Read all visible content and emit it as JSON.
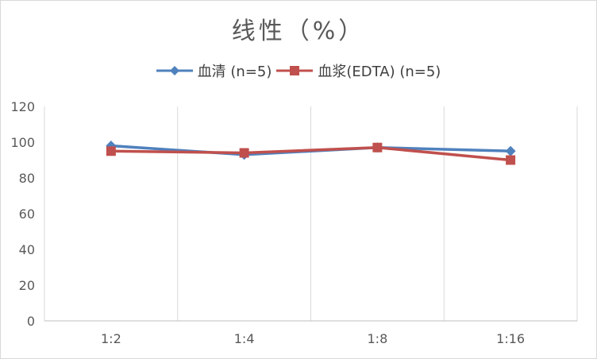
{
  "chart_data": {
    "type": "line",
    "title": "线性（%）",
    "categories": [
      "1:2",
      "1:4",
      "1:8",
      "1:16"
    ],
    "ylim": [
      0,
      120
    ],
    "yticks": [
      0,
      20,
      40,
      60,
      80,
      100,
      120
    ],
    "grid": {
      "vertical": true,
      "horizontal": false
    },
    "legend_position": "top",
    "series": [
      {
        "name": "血清 (n=5)",
        "values": [
          98,
          93,
          97,
          95
        ],
        "color": "#4f81bd",
        "marker": "diamond"
      },
      {
        "name": "血浆(EDTA) (n=5)",
        "values": [
          95,
          94,
          97,
          90
        ],
        "color": "#c0504d",
        "marker": "square"
      }
    ]
  }
}
